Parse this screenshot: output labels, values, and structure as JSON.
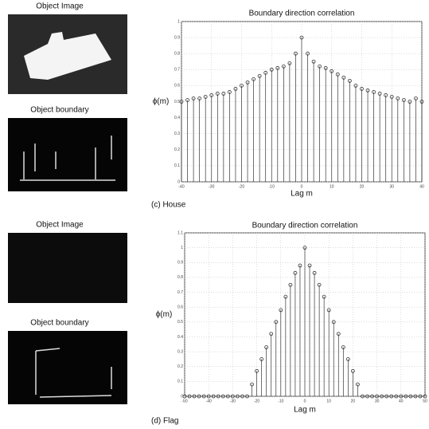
{
  "panels": [
    {
      "image_label": "Object Image",
      "boundary_label": "Object boundary",
      "caption": "(c) House"
    },
    {
      "image_label": "Object Image",
      "boundary_label": "Object boundary",
      "caption": "(d) Flag"
    }
  ],
  "chart_data": [
    {
      "type": "stem",
      "title": "Boundary direction correlation",
      "x_label": "Lag m",
      "y_label": "ϕ(m)",
      "color": "#333333",
      "grid": true,
      "x": [
        -40,
        -38,
        -36,
        -34,
        -32,
        -30,
        -28,
        -26,
        -24,
        -22,
        -20,
        -18,
        -16,
        -14,
        -12,
        -10,
        -8,
        -6,
        -4,
        -2,
        0,
        2,
        4,
        6,
        8,
        10,
        12,
        14,
        16,
        18,
        20,
        22,
        24,
        26,
        28,
        30,
        32,
        34,
        36,
        38,
        40
      ],
      "values": [
        0.5,
        0.51,
        0.52,
        0.52,
        0.53,
        0.54,
        0.55,
        0.55,
        0.56,
        0.58,
        0.6,
        0.62,
        0.64,
        0.66,
        0.68,
        0.7,
        0.71,
        0.72,
        0.74,
        0.8,
        0.9,
        0.8,
        0.75,
        0.72,
        0.71,
        0.69,
        0.67,
        0.65,
        0.63,
        0.6,
        0.58,
        0.57,
        0.56,
        0.55,
        0.54,
        0.53,
        0.52,
        0.51,
        0.5,
        0.52,
        0.5
      ],
      "xlim": [
        -40,
        40
      ],
      "xticks": [
        -40,
        -30,
        -20,
        -10,
        0,
        10,
        20,
        30,
        40
      ],
      "ylim": [
        0,
        1
      ],
      "yticks": [
        0,
        0.1,
        0.2,
        0.3,
        0.4,
        0.5,
        0.6,
        0.7,
        0.8,
        0.9,
        1
      ]
    },
    {
      "type": "stem",
      "title": "Boundary direction correlation",
      "x_label": "Lag m",
      "y_label": "ϕ(m)",
      "color": "#333333",
      "grid": true,
      "x": [
        -50,
        -48,
        -46,
        -44,
        -42,
        -40,
        -38,
        -36,
        -34,
        -32,
        -30,
        -28,
        -26,
        -24,
        -22,
        -20,
        -18,
        -16,
        -14,
        -12,
        -10,
        -8,
        -6,
        -4,
        -2,
        0,
        2,
        4,
        6,
        8,
        10,
        12,
        14,
        16,
        18,
        20,
        22,
        24,
        26,
        28,
        30,
        32,
        34,
        36,
        38,
        40,
        42,
        44,
        46,
        48,
        50
      ],
      "values": [
        0,
        0,
        0,
        0,
        0,
        0,
        0,
        0,
        0,
        0,
        0,
        0,
        0,
        0,
        0.08,
        0.17,
        0.25,
        0.33,
        0.42,
        0.5,
        0.58,
        0.67,
        0.75,
        0.83,
        0.88,
        1.0,
        0.88,
        0.83,
        0.75,
        0.67,
        0.58,
        0.5,
        0.42,
        0.33,
        0.25,
        0.17,
        0.08,
        0,
        0,
        0,
        0,
        0,
        0,
        0,
        0,
        0,
        0,
        0,
        0,
        0,
        0
      ],
      "xlim": [
        -50,
        50
      ],
      "xticks": [
        -50,
        -40,
        -30,
        -20,
        -10,
        0,
        10,
        20,
        30,
        40,
        50
      ],
      "ylim": [
        0,
        1.1
      ],
      "yticks": [
        0,
        0.1,
        0.2,
        0.3,
        0.4,
        0.5,
        0.6,
        0.7,
        0.8,
        0.9,
        1,
        1.1
      ]
    }
  ]
}
